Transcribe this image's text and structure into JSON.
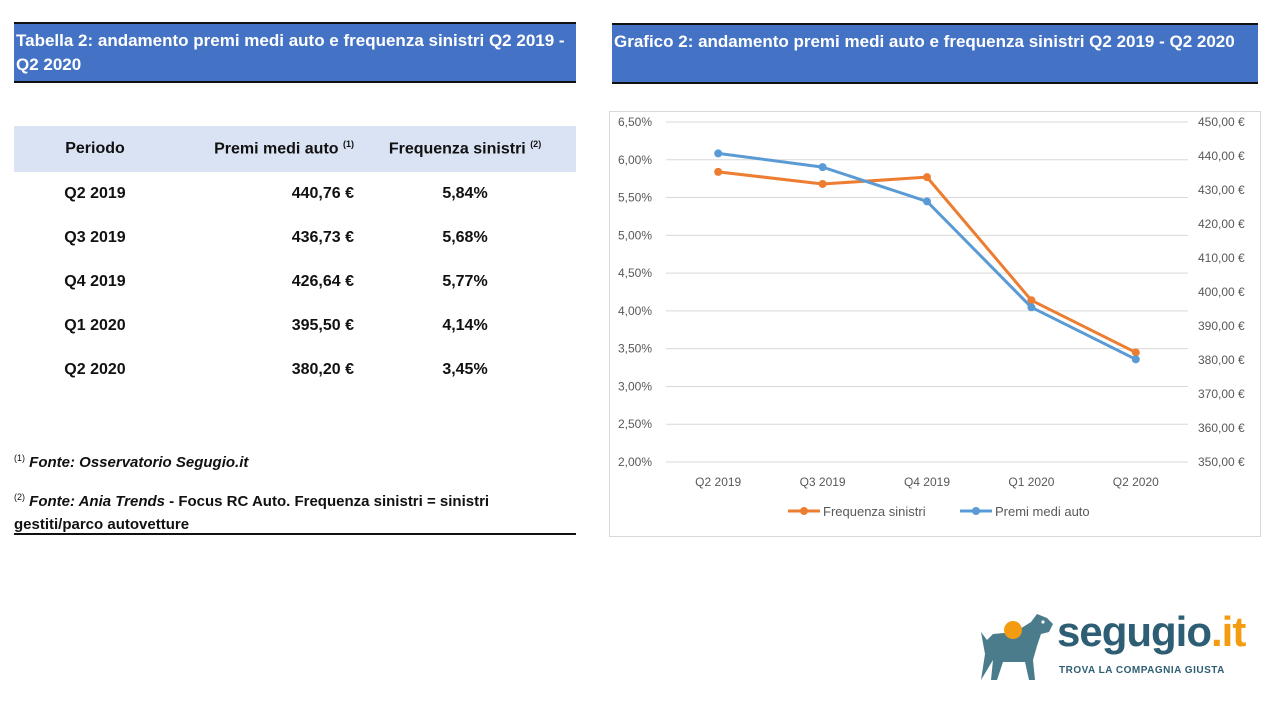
{
  "table": {
    "title": "Tabella 2: andamento premi medi auto e frequenza sinistri Q2 2019 - Q2 2020",
    "headers": {
      "period": "Periodo",
      "premium": "Premi medi auto",
      "premium_sup": "(1)",
      "frequency": "Frequenza sinistri",
      "frequency_sup": "(2)"
    },
    "rows": [
      {
        "period": "Q2 2019",
        "premium": "440,76 €",
        "frequency": "5,84%"
      },
      {
        "period": "Q3 2019",
        "premium": "436,73 €",
        "frequency": "5,68%"
      },
      {
        "period": "Q4 2019",
        "premium": "426,64 €",
        "frequency": "5,77%"
      },
      {
        "period": "Q1 2020",
        "premium": "395,50 €",
        "frequency": "4,14%"
      },
      {
        "period": "Q2 2020",
        "premium": "380,20 €",
        "frequency": "3,45%"
      }
    ],
    "notes": [
      {
        "sup": "(1)",
        "source": "Fonte: Osservatorio Segugio.it",
        "text": ""
      },
      {
        "sup": "(2)",
        "source": "Fonte: Ania Trends",
        "text": " - Focus RC Auto. Frequenza sinistri = sinistri gestiti/parco autovetture"
      }
    ]
  },
  "chart_data": {
    "type": "line",
    "title": "Grafico 2: andamento premi medi auto e frequenza sinistri Q2 2019 - Q2 2020",
    "categories": [
      "Q2 2019",
      "Q3 2019",
      "Q4 2019",
      "Q1 2020",
      "Q2 2020"
    ],
    "series": [
      {
        "name": "Frequenza sinistri",
        "axis": "left",
        "color": "#ed7d31",
        "values": [
          5.84,
          5.68,
          5.77,
          4.14,
          3.45
        ]
      },
      {
        "name": "Premi medi auto",
        "axis": "right",
        "color": "#5b9bd5",
        "values": [
          440.76,
          436.73,
          426.64,
          395.5,
          380.2
        ]
      }
    ],
    "y_left": {
      "min": 2.0,
      "max": 6.5,
      "step": 0.5,
      "tick_labels": [
        "2,00%",
        "2,50%",
        "3,00%",
        "3,50%",
        "4,00%",
        "4,50%",
        "5,00%",
        "5,50%",
        "6,00%",
        "6,50%"
      ]
    },
    "y_right": {
      "min": 350,
      "max": 450,
      "step": 10,
      "tick_labels": [
        "350,00 €",
        "360,00 €",
        "370,00 €",
        "380,00 €",
        "390,00 €",
        "400,00 €",
        "410,00 €",
        "420,00 €",
        "430,00 €",
        "440,00 €",
        "450,00 €"
      ]
    },
    "grid": true,
    "legend_position": "bottom"
  },
  "logo": {
    "name": "segugio",
    "tld": ".it",
    "tagline": "TROVA LA COMPAGNIA GIUSTA",
    "colors": {
      "primary": "#2e5e73",
      "accent": "#f39c12"
    }
  }
}
